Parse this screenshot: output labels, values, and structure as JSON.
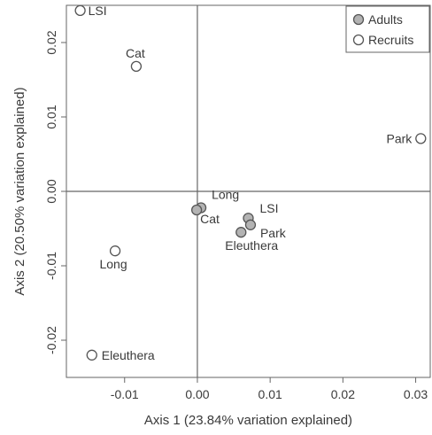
{
  "chart_data": {
    "type": "scatter",
    "xlabel": "Axis 1 (23.84% variation explained)",
    "ylabel": "Axis 2 (20.50% variation explained)",
    "xlim": [
      -0.018,
      0.032
    ],
    "ylim": [
      -0.025,
      0.025
    ],
    "x_ticks": [
      -0.01,
      0.0,
      0.01,
      0.02,
      0.03
    ],
    "x_tick_labels": [
      "-0.01",
      "0.00",
      "0.01",
      "0.02",
      "0.03"
    ],
    "y_ticks": [
      -0.02,
      -0.01,
      0.0,
      0.01,
      0.02
    ],
    "y_tick_labels": [
      "-0.02",
      "-0.01",
      "0.00",
      "0.01",
      "0.02"
    ],
    "grid": false,
    "reference_lines": {
      "x": 0,
      "y": 0
    },
    "legend": "top-right",
    "series": [
      {
        "name": "Adults",
        "fill": "#b3b3b3",
        "points": [
          {
            "label": "Long",
            "x": 0.0005,
            "y": -0.0022
          },
          {
            "label": "Cat",
            "x": -0.0001,
            "y": -0.0025
          },
          {
            "label": "LSI",
            "x": 0.007,
            "y": -0.0036
          },
          {
            "label": "Park",
            "x": 0.0073,
            "y": -0.0045
          },
          {
            "label": "Eleuthera",
            "x": 0.006,
            "y": -0.0055
          }
        ]
      },
      {
        "name": "Recruits",
        "fill": "#ffffff",
        "points": [
          {
            "label": "LSI",
            "x": -0.0161,
            "y": 0.0243
          },
          {
            "label": "Cat",
            "x": -0.0084,
            "y": 0.0168
          },
          {
            "label": "Park",
            "x": 0.0307,
            "y": 0.0071
          },
          {
            "label": "Long",
            "x": -0.0113,
            "y": -0.008
          },
          {
            "label": "Eleuthera",
            "x": -0.0145,
            "y": -0.022
          }
        ]
      }
    ]
  }
}
